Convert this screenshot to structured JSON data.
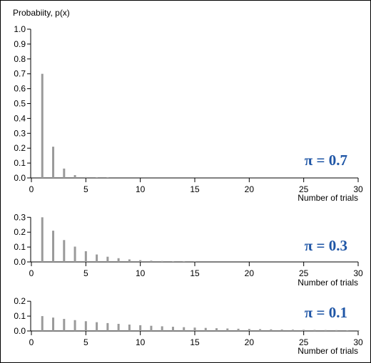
{
  "ylabel": "Probabiity, p(x)",
  "bar_color": "#9a9a9a",
  "annotation_color": "#1f56a6",
  "chart_data": [
    {
      "type": "bar",
      "annotation": "π = 0.7",
      "xlabel": "Number of trials",
      "xlim": [
        0,
        30
      ],
      "ylim": [
        0,
        1.0
      ],
      "xticks": [
        "0",
        "5",
        "10",
        "15",
        "20",
        "25",
        "30"
      ],
      "yticks": [
        "0.0",
        "0.1",
        "0.2",
        "0.3",
        "0.4",
        "0.5",
        "0.6",
        "0.7",
        "0.8",
        "0.9",
        "1.0"
      ],
      "x": [
        1,
        2,
        3,
        4,
        5,
        6,
        7
      ],
      "values": [
        0.7,
        0.21,
        0.063,
        0.019,
        0.0057,
        0.0017,
        0.0005
      ]
    },
    {
      "type": "bar",
      "annotation": "π = 0.3",
      "xlabel": "Number of trials",
      "xlim": [
        0,
        30
      ],
      "ylim": [
        0,
        0.33
      ],
      "xticks": [
        "0",
        "5",
        "10",
        "15",
        "20",
        "25",
        "30"
      ],
      "yticks": [
        "0.0",
        "0.1",
        "0.2",
        "0.3"
      ],
      "x": [
        1,
        2,
        3,
        4,
        5,
        6,
        7,
        8,
        9,
        10,
        11,
        12,
        13,
        14,
        15
      ],
      "values": [
        0.3,
        0.21,
        0.147,
        0.103,
        0.072,
        0.05,
        0.035,
        0.025,
        0.017,
        0.012,
        0.0085,
        0.006,
        0.0042,
        0.0029,
        0.002
      ]
    },
    {
      "type": "bar",
      "annotation": "π = 0.1",
      "xlabel": "Number of trials",
      "xlim": [
        0,
        30
      ],
      "ylim": [
        0,
        0.22
      ],
      "xticks": [
        "0",
        "5",
        "10",
        "15",
        "20",
        "25",
        "30"
      ],
      "yticks": [
        "0.0",
        "0.1",
        "0.2"
      ],
      "x": [
        1,
        2,
        3,
        4,
        5,
        6,
        7,
        8,
        9,
        10,
        11,
        12,
        13,
        14,
        15,
        16,
        17,
        18,
        19,
        20,
        21,
        22,
        23,
        24,
        25,
        26,
        27,
        28,
        29,
        30
      ],
      "values": [
        0.1,
        0.09,
        0.081,
        0.0729,
        0.0656,
        0.059,
        0.0531,
        0.0478,
        0.043,
        0.0387,
        0.0349,
        0.0314,
        0.0282,
        0.0254,
        0.0229,
        0.0206,
        0.0185,
        0.0167,
        0.015,
        0.0135,
        0.0122,
        0.0109,
        0.0098,
        0.0089,
        0.008,
        0.0072,
        0.0065,
        0.0058,
        0.0052,
        0.0047
      ]
    }
  ]
}
